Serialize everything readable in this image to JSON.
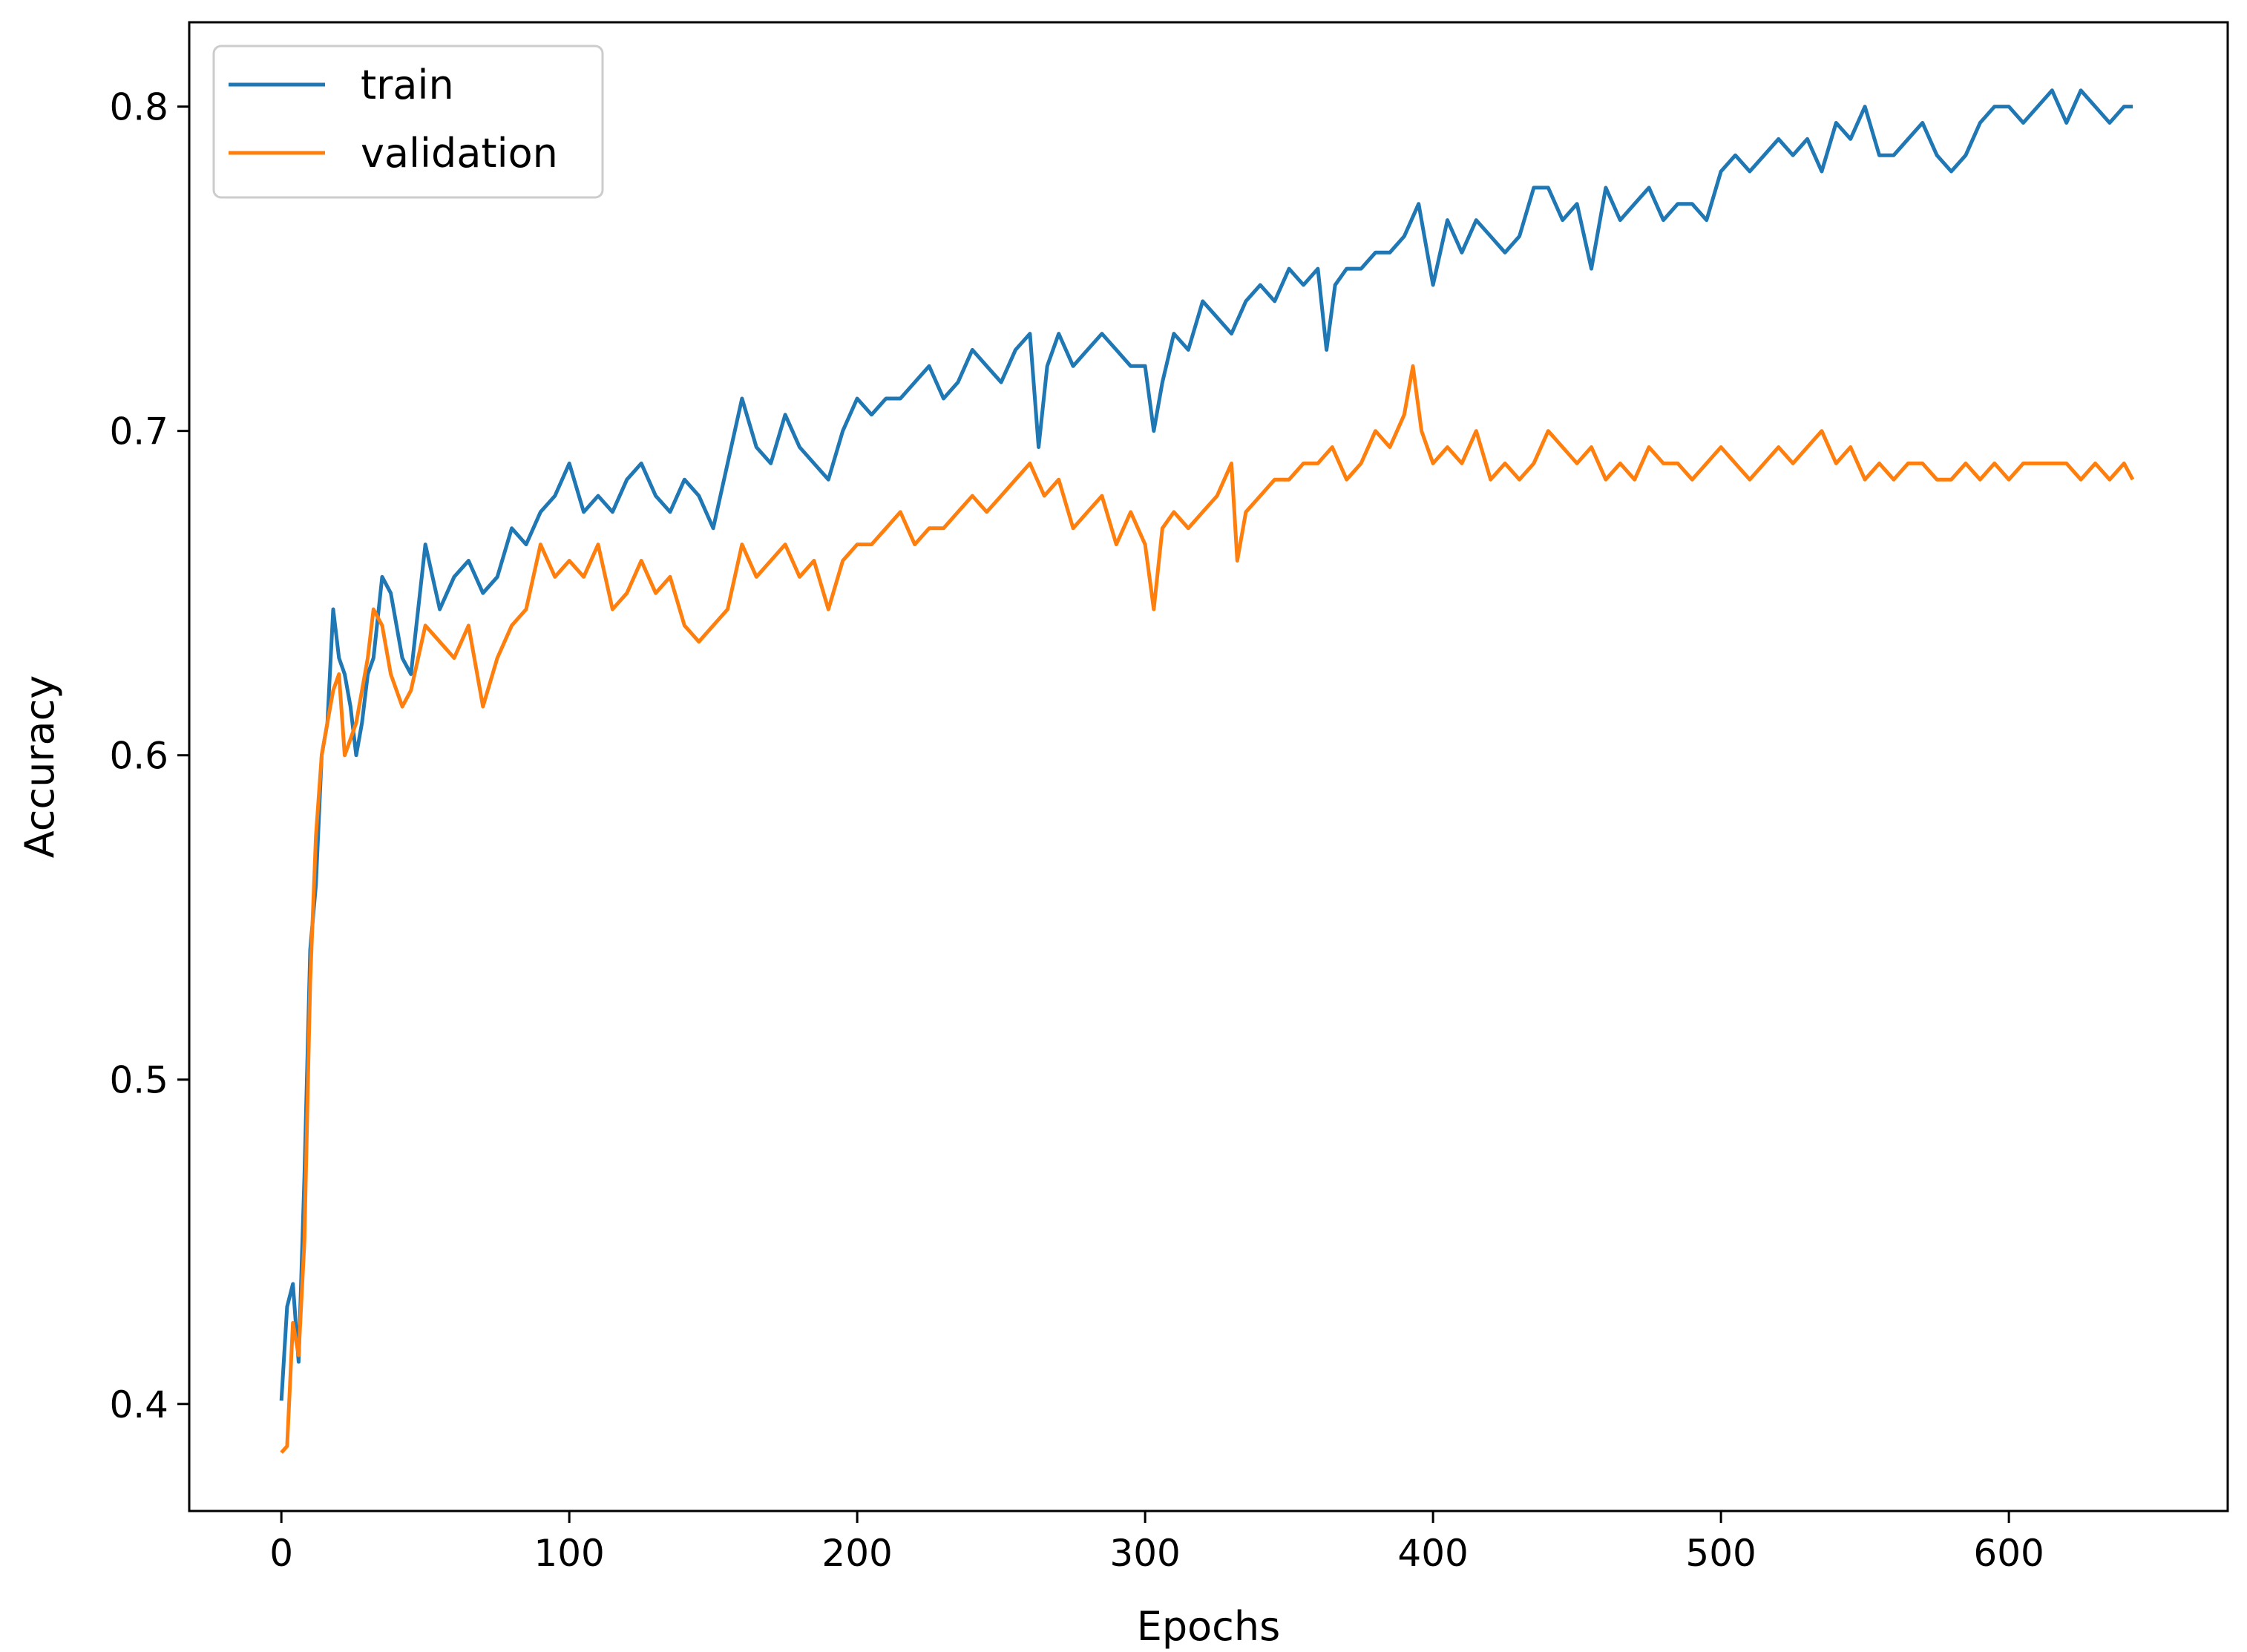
{
  "chart_data": {
    "type": "line",
    "title": "",
    "xlabel": "Epochs",
    "ylabel": "Accuracy",
    "xlim": [
      -32,
      676
    ],
    "ylim": [
      0.367,
      0.826
    ],
    "x_ticks": [
      0,
      100,
      200,
      300,
      400,
      500,
      600
    ],
    "y_ticks": [
      0.4,
      0.5,
      0.6,
      0.7,
      0.8
    ],
    "grid": false,
    "legend_position": "top-left",
    "series": [
      {
        "name": "train",
        "color": "#1f77b4",
        "x": [
          0,
          2,
          4,
          6,
          8,
          10,
          12,
          14,
          16,
          18,
          20,
          22,
          24,
          26,
          28,
          30,
          32,
          35,
          38,
          42,
          45,
          50,
          55,
          60,
          65,
          70,
          75,
          80,
          85,
          90,
          95,
          100,
          105,
          110,
          115,
          120,
          125,
          130,
          135,
          140,
          145,
          150,
          155,
          160,
          165,
          170,
          175,
          180,
          185,
          190,
          195,
          200,
          205,
          210,
          215,
          220,
          225,
          230,
          235,
          240,
          245,
          250,
          255,
          260,
          263,
          266,
          270,
          275,
          280,
          285,
          290,
          295,
          300,
          303,
          306,
          310,
          315,
          320,
          325,
          330,
          335,
          340,
          345,
          350,
          355,
          360,
          363,
          366,
          370,
          375,
          380,
          385,
          390,
          395,
          400,
          405,
          410,
          415,
          420,
          425,
          430,
          435,
          440,
          445,
          450,
          455,
          460,
          465,
          470,
          475,
          480,
          485,
          490,
          495,
          500,
          505,
          510,
          515,
          520,
          525,
          530,
          535,
          540,
          545,
          550,
          555,
          560,
          565,
          570,
          575,
          580,
          585,
          590,
          595,
          600,
          605,
          610,
          615,
          620,
          625,
          630,
          635,
          640,
          643
        ],
        "y": [
          0.401,
          0.43,
          0.437,
          0.413,
          0.47,
          0.54,
          0.56,
          0.6,
          0.61,
          0.645,
          0.63,
          0.625,
          0.615,
          0.6,
          0.61,
          0.625,
          0.63,
          0.655,
          0.65,
          0.63,
          0.625,
          0.665,
          0.645,
          0.655,
          0.66,
          0.65,
          0.655,
          0.67,
          0.665,
          0.675,
          0.68,
          0.69,
          0.675,
          0.68,
          0.675,
          0.685,
          0.69,
          0.68,
          0.675,
          0.685,
          0.68,
          0.67,
          0.69,
          0.71,
          0.695,
          0.69,
          0.705,
          0.695,
          0.69,
          0.685,
          0.7,
          0.71,
          0.705,
          0.71,
          0.71,
          0.715,
          0.72,
          0.71,
          0.715,
          0.725,
          0.72,
          0.715,
          0.725,
          0.73,
          0.695,
          0.72,
          0.73,
          0.72,
          0.725,
          0.73,
          0.725,
          0.72,
          0.72,
          0.7,
          0.715,
          0.73,
          0.725,
          0.74,
          0.735,
          0.73,
          0.74,
          0.745,
          0.74,
          0.75,
          0.745,
          0.75,
          0.725,
          0.745,
          0.75,
          0.75,
          0.755,
          0.755,
          0.76,
          0.77,
          0.745,
          0.765,
          0.755,
          0.765,
          0.76,
          0.755,
          0.76,
          0.775,
          0.775,
          0.765,
          0.77,
          0.75,
          0.775,
          0.765,
          0.77,
          0.775,
          0.765,
          0.77,
          0.77,
          0.765,
          0.78,
          0.785,
          0.78,
          0.785,
          0.79,
          0.785,
          0.79,
          0.78,
          0.795,
          0.79,
          0.8,
          0.785,
          0.785,
          0.79,
          0.795,
          0.785,
          0.78,
          0.785,
          0.795,
          0.8,
          0.8,
          0.795,
          0.8,
          0.805,
          0.795,
          0.805,
          0.8,
          0.795,
          0.8,
          0.8
        ]
      },
      {
        "name": "validation",
        "color": "#ff7f0e",
        "x": [
          0,
          2,
          4,
          6,
          8,
          10,
          12,
          14,
          16,
          18,
          20,
          22,
          24,
          26,
          28,
          30,
          32,
          35,
          38,
          42,
          45,
          50,
          55,
          60,
          65,
          70,
          75,
          80,
          85,
          90,
          95,
          100,
          105,
          110,
          115,
          120,
          125,
          130,
          135,
          140,
          145,
          150,
          155,
          160,
          165,
          170,
          175,
          180,
          185,
          190,
          195,
          200,
          205,
          210,
          215,
          220,
          225,
          230,
          235,
          240,
          245,
          250,
          255,
          260,
          265,
          270,
          275,
          280,
          285,
          290,
          295,
          300,
          303,
          306,
          310,
          315,
          320,
          325,
          330,
          332,
          335,
          340,
          345,
          350,
          355,
          360,
          365,
          370,
          375,
          380,
          385,
          390,
          393,
          396,
          400,
          405,
          410,
          415,
          420,
          425,
          430,
          435,
          440,
          445,
          450,
          455,
          460,
          465,
          470,
          475,
          480,
          485,
          490,
          495,
          500,
          505,
          510,
          515,
          520,
          525,
          530,
          535,
          540,
          545,
          550,
          555,
          560,
          565,
          570,
          575,
          580,
          585,
          590,
          595,
          600,
          605,
          610,
          615,
          620,
          625,
          630,
          635,
          640,
          643
        ],
        "y": [
          0.385,
          0.387,
          0.425,
          0.415,
          0.45,
          0.53,
          0.575,
          0.6,
          0.61,
          0.62,
          0.625,
          0.6,
          0.605,
          0.61,
          0.62,
          0.63,
          0.645,
          0.64,
          0.625,
          0.615,
          0.62,
          0.64,
          0.635,
          0.63,
          0.64,
          0.615,
          0.63,
          0.64,
          0.645,
          0.665,
          0.655,
          0.66,
          0.655,
          0.665,
          0.645,
          0.65,
          0.66,
          0.65,
          0.655,
          0.64,
          0.635,
          0.64,
          0.645,
          0.665,
          0.655,
          0.66,
          0.665,
          0.655,
          0.66,
          0.645,
          0.66,
          0.665,
          0.665,
          0.67,
          0.675,
          0.665,
          0.67,
          0.67,
          0.675,
          0.68,
          0.675,
          0.68,
          0.685,
          0.69,
          0.68,
          0.685,
          0.67,
          0.675,
          0.68,
          0.665,
          0.675,
          0.665,
          0.645,
          0.67,
          0.675,
          0.67,
          0.675,
          0.68,
          0.69,
          0.66,
          0.675,
          0.68,
          0.685,
          0.685,
          0.69,
          0.69,
          0.695,
          0.685,
          0.69,
          0.7,
          0.695,
          0.705,
          0.72,
          0.7,
          0.69,
          0.695,
          0.69,
          0.7,
          0.685,
          0.69,
          0.685,
          0.69,
          0.7,
          0.695,
          0.69,
          0.695,
          0.685,
          0.69,
          0.685,
          0.695,
          0.69,
          0.69,
          0.685,
          0.69,
          0.695,
          0.69,
          0.685,
          0.69,
          0.695,
          0.69,
          0.695,
          0.7,
          0.69,
          0.695,
          0.685,
          0.69,
          0.685,
          0.69,
          0.69,
          0.685,
          0.685,
          0.69,
          0.685,
          0.69,
          0.685,
          0.69,
          0.69,
          0.69,
          0.69,
          0.685,
          0.69,
          0.685,
          0.69,
          0.685
        ]
      }
    ]
  }
}
